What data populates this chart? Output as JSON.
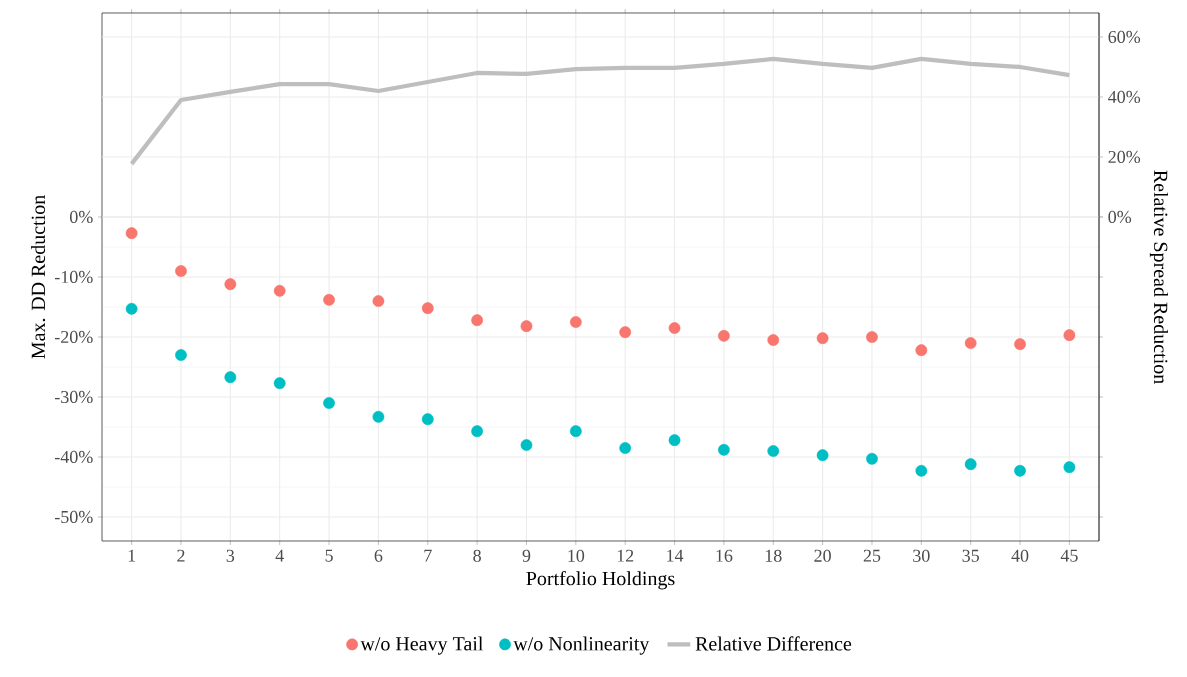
{
  "chart_data": {
    "type": "scatter",
    "xlabel": "Portfolio Holdings",
    "ylabel": "Max. DD Reduction",
    "y2label": "Relative Spread Reduction",
    "categories": [
      "1",
      "2",
      "3",
      "4",
      "5",
      "6",
      "7",
      "8",
      "9",
      "10",
      "12",
      "14",
      "16",
      "18",
      "20",
      "25",
      "30",
      "35",
      "40",
      "45"
    ],
    "series": [
      {
        "name": "w/o Heavy Tail",
        "color": "#f8766d",
        "marker": "circle",
        "values": [
          -2.7,
          -9,
          -11.2,
          -12.3,
          -13.8,
          -14,
          -15.2,
          -17.2,
          -18.2,
          -17.5,
          -19.2,
          -18.5,
          -19.8,
          -20.5,
          -20.2,
          -20,
          -22.2,
          -21,
          -21.2,
          -19.7
        ]
      },
      {
        "name": "w/o Nonlinearity",
        "color": "#00bfc4",
        "marker": "circle",
        "values": [
          -15.3,
          -23,
          -26.7,
          -27.7,
          -31,
          -33.3,
          -33.7,
          -35.7,
          -38,
          -35.7,
          -38.5,
          -37.2,
          -38.8,
          -39,
          -39.7,
          -40.3,
          -42.3,
          -41.2,
          -42.3,
          -41.7
        ]
      },
      {
        "name": "Relative Difference",
        "color": "#bebebe",
        "type": "line",
        "line_style": "solid",
        "axis": "y2",
        "values": [
          17.7,
          39,
          41.7,
          44.3,
          44.3,
          42,
          45,
          48,
          47.7,
          49.3,
          49.7,
          49.7,
          51,
          52.7,
          51,
          49.7,
          52.7,
          51,
          50,
          47.3
        ]
      }
    ],
    "ylim": [
      -54,
      34
    ],
    "yticks": [
      {
        "value": -50,
        "label": "-50%"
      },
      {
        "value": -40,
        "label": "-40%"
      },
      {
        "value": -30,
        "label": "-30%"
      },
      {
        "value": -20,
        "label": "-20%"
      },
      {
        "value": -10,
        "label": "-10%"
      },
      {
        "value": 0,
        "label": "0%"
      }
    ],
    "y2lim": [
      -108,
      68
    ],
    "y2ticks": [
      {
        "value": 0,
        "label": "0%"
      },
      {
        "value": 20,
        "label": "20%"
      },
      {
        "value": 40,
        "label": "40%"
      },
      {
        "value": 60,
        "label": "60%"
      }
    ],
    "grid": true,
    "legend": "bottom"
  }
}
